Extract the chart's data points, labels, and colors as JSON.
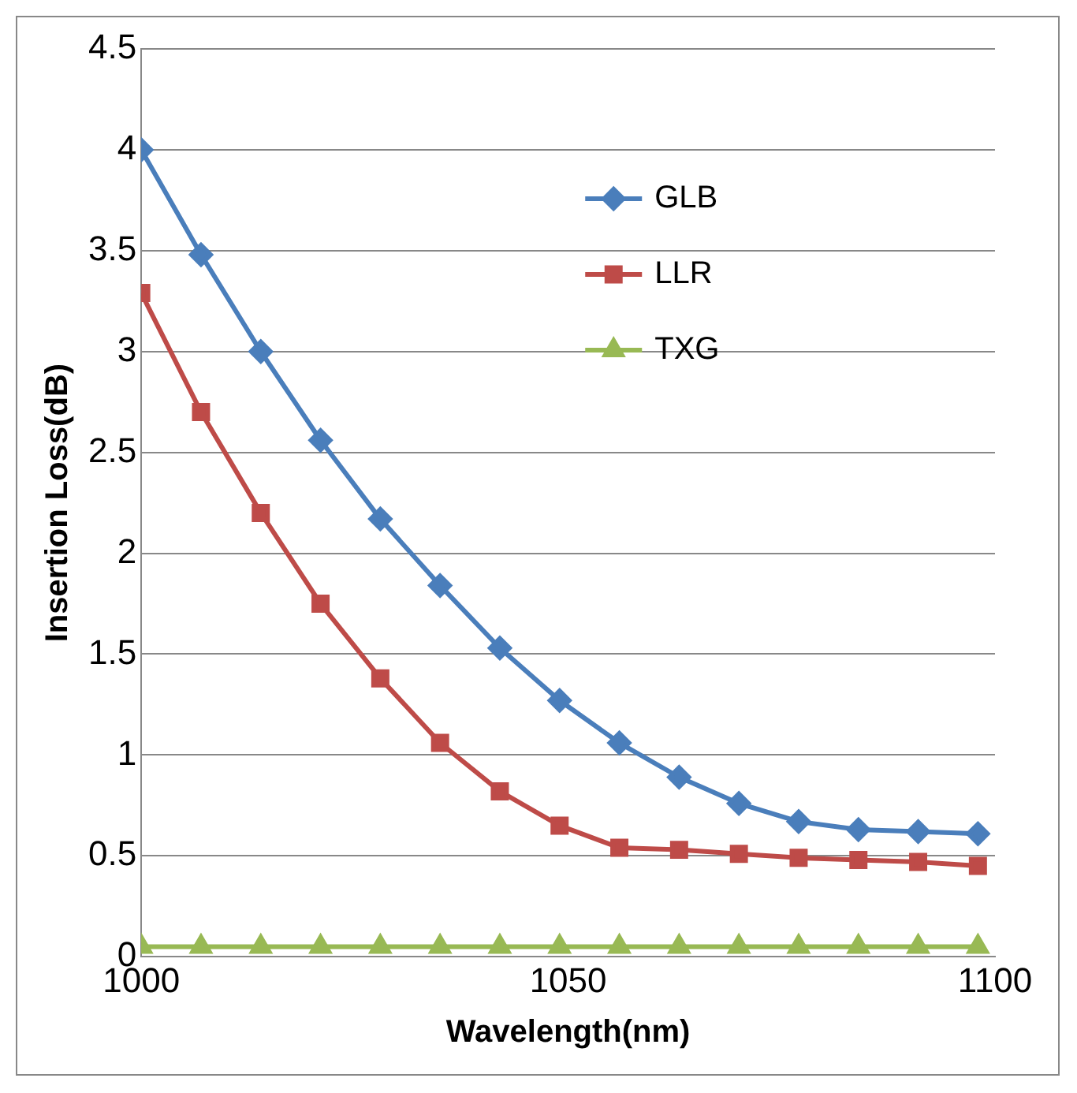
{
  "chart_data": {
    "type": "line",
    "xlabel": "Wavelength(nm)",
    "ylabel": "Insertion Loss(dB)",
    "x": [
      1000,
      1007,
      1014,
      1021,
      1028,
      1035,
      1042,
      1049,
      1056,
      1063,
      1070,
      1077,
      1084,
      1091,
      1098
    ],
    "series": [
      {
        "name": "GLB",
        "color": "#4a7ebb",
        "marker": "diamond",
        "values": [
          4.0,
          3.48,
          3.0,
          2.56,
          2.17,
          1.84,
          1.53,
          1.27,
          1.06,
          0.89,
          0.76,
          0.67,
          0.63,
          0.62,
          0.61
        ]
      },
      {
        "name": "LLR",
        "color": "#be4b48",
        "marker": "square",
        "values": [
          3.29,
          2.7,
          2.2,
          1.75,
          1.38,
          1.06,
          0.82,
          0.65,
          0.54,
          0.53,
          0.51,
          0.49,
          0.48,
          0.47,
          0.45
        ]
      },
      {
        "name": "TXG",
        "color": "#98b954",
        "marker": "triangle",
        "values": [
          0.05,
          0.05,
          0.05,
          0.05,
          0.05,
          0.05,
          0.05,
          0.05,
          0.05,
          0.05,
          0.05,
          0.05,
          0.05,
          0.05,
          0.05
        ]
      }
    ],
    "xlim": [
      1000,
      1100
    ],
    "xticks": [
      1000,
      1050,
      1100
    ],
    "ylim": [
      0,
      4.5
    ],
    "yticks": [
      0,
      0.5,
      1,
      1.5,
      2,
      2.5,
      3,
      3.5,
      4,
      4.5
    ],
    "grid": "y",
    "legend": "top right",
    "line_style": "solid"
  }
}
